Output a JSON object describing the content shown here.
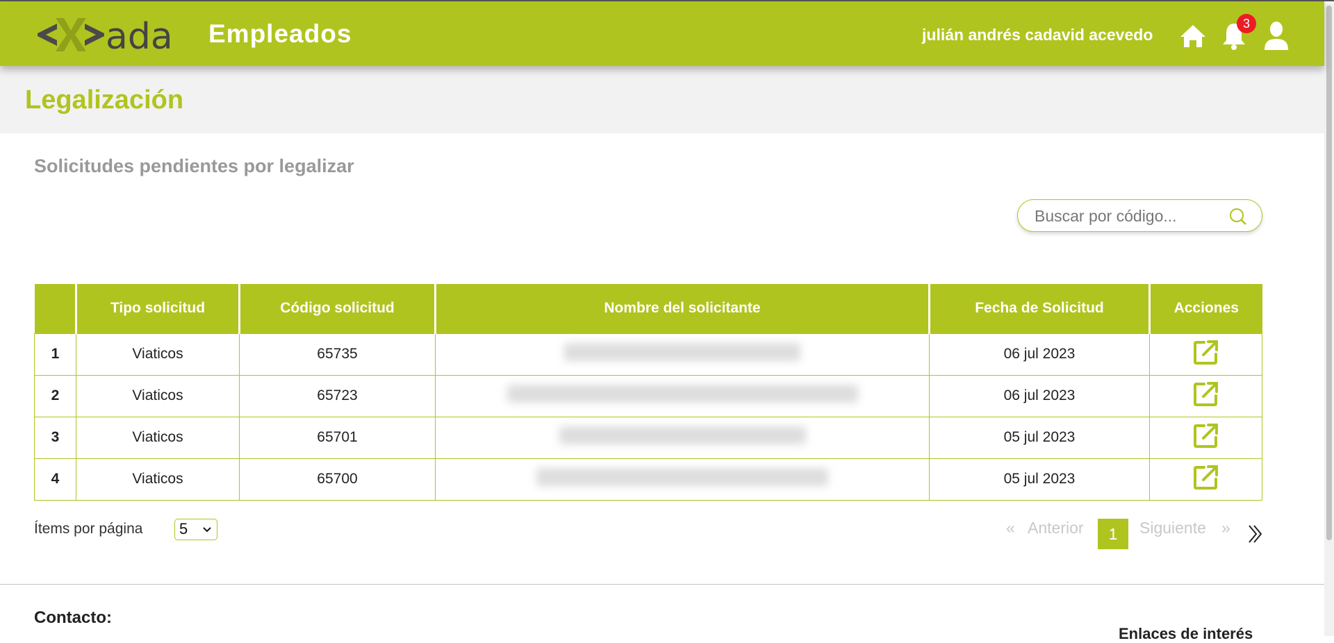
{
  "header": {
    "app_title": "Empleados",
    "user_name": "julián andrés cadavid acevedo",
    "notifications_count": "3",
    "logo_text": "ada",
    "brand_color": "#b0c41f",
    "icons": [
      "home-icon",
      "bell-icon",
      "user-icon"
    ]
  },
  "page": {
    "title": "Legalización",
    "subtitle": "Solicitudes pendientes por legalizar"
  },
  "search": {
    "placeholder": "Buscar por código..."
  },
  "table": {
    "columns": [
      "",
      "Tipo solicitud",
      "Código solicitud",
      "Nombre del solicitante",
      "Fecha de Solicitud",
      "Acciones"
    ],
    "rows": [
      {
        "n": "1",
        "tipo": "Viaticos",
        "codigo": "65735",
        "fecha": "06 jul 2023"
      },
      {
        "n": "2",
        "tipo": "Viaticos",
        "codigo": "65723",
        "fecha": "06 jul 2023"
      },
      {
        "n": "3",
        "tipo": "Viaticos",
        "codigo": "65701",
        "fecha": "05 jul 2023"
      },
      {
        "n": "4",
        "tipo": "Viaticos",
        "codigo": "65700",
        "fecha": "05 jul 2023"
      }
    ]
  },
  "pagination": {
    "items_label": "Ítems por página",
    "items_value": "5",
    "first": "«",
    "prev": "Anterior",
    "current": "1",
    "next": "Siguiente",
    "last": "»",
    "end": "»"
  },
  "footer": {
    "contact": "Contacto:",
    "links": "Enlaces de interés"
  }
}
